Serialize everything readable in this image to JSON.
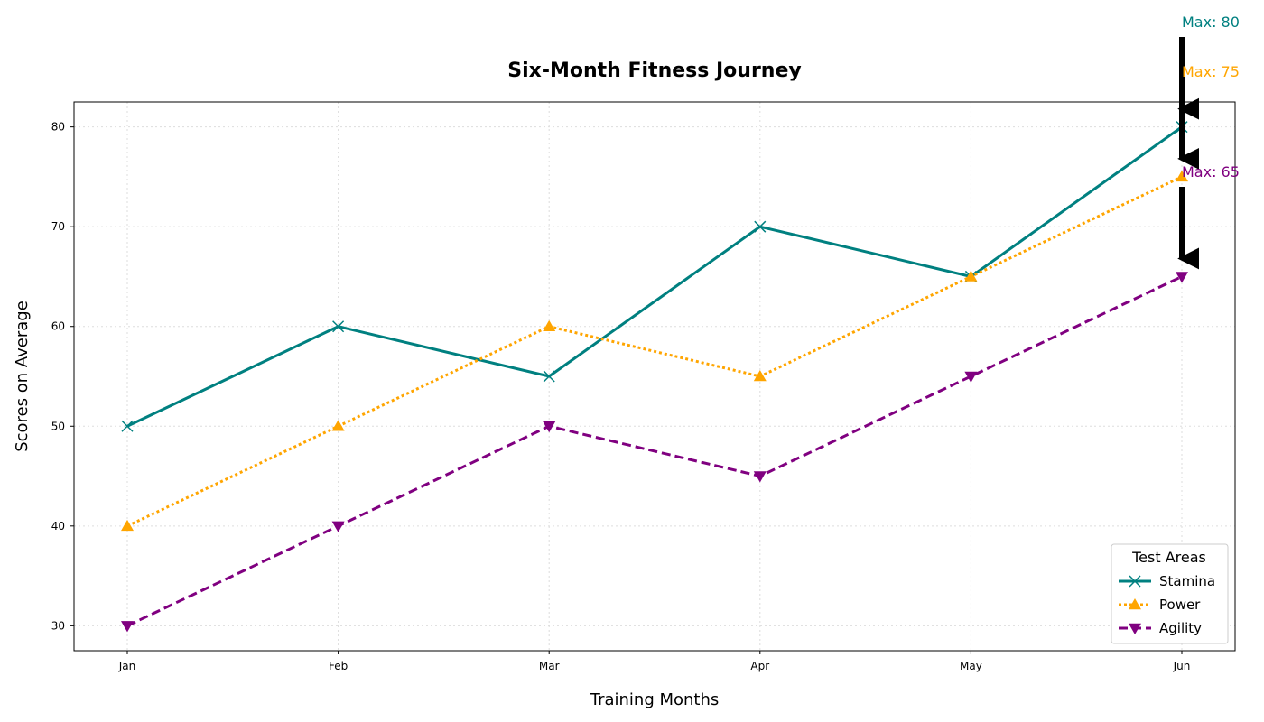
{
  "chart_data": {
    "type": "line",
    "title": "Six-Month Fitness Journey",
    "xlabel": "Training Months",
    "ylabel": "Scores on Average",
    "categories": [
      "Jan",
      "Feb",
      "Mar",
      "Apr",
      "May",
      "Jun"
    ],
    "ylim": [
      27.5,
      82.5
    ],
    "yticks": [
      30,
      40,
      50,
      60,
      70,
      80
    ],
    "grid": true,
    "legend": {
      "title": "Test Areas",
      "placement": "lower-right"
    },
    "series": [
      {
        "name": "Stamina",
        "values": [
          50,
          60,
          55,
          70,
          65,
          80
        ],
        "color": "#008080",
        "marker": "x",
        "linestyle": "solid"
      },
      {
        "name": "Power",
        "values": [
          40,
          50,
          60,
          55,
          65,
          75
        ],
        "color": "#FFA500",
        "marker": "triangle-up",
        "linestyle": "dotted"
      },
      {
        "name": "Agility",
        "values": [
          30,
          40,
          50,
          45,
          55,
          65
        ],
        "color": "#800080",
        "marker": "triangle-down",
        "linestyle": "dashed"
      }
    ],
    "annotations": [
      {
        "text": "Max: 80",
        "x": "Jun",
        "y": 80,
        "color": "#008080"
      },
      {
        "text": "Max: 75",
        "x": "Jun",
        "y": 75,
        "color": "#FFA500"
      },
      {
        "text": "Max: 65",
        "x": "Jun",
        "y": 65,
        "color": "#800080"
      }
    ]
  }
}
